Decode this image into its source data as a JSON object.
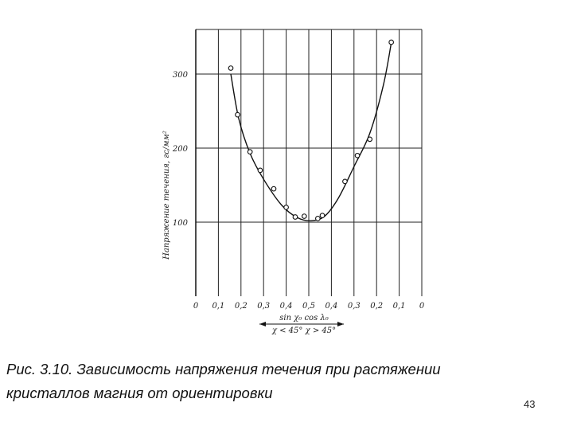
{
  "chart_data": {
    "type": "scatter",
    "ylabel": "Напряжение течения, гс/мм²",
    "ylim": [
      0,
      350
    ],
    "yticks": [
      100,
      200,
      300
    ],
    "ytick_labels": [
      "100",
      "200",
      "300"
    ],
    "xtick_labels": [
      "0",
      "0,1",
      "0,2",
      "0,3",
      "0,4",
      "0,5",
      "0,4",
      "0,3",
      "0,2",
      "0,1",
      "0"
    ],
    "xlabel_line1": "sin χ₀   cos λ₀",
    "xlabel_line2": "χ < 45°  χ > 45°",
    "grid": true,
    "x_description": "orientation: sin χ₀ cos λ₀ rising 0→0,5 for χ<45°, then falling 0,5→0 for χ>45°",
    "series": [
      {
        "points": [
          {
            "x": 0.155,
            "y": 308
          },
          {
            "x": 0.185,
            "y": 245
          },
          {
            "x": 0.24,
            "y": 195
          },
          {
            "x": 0.285,
            "y": 170
          },
          {
            "x": 0.345,
            "y": 145
          },
          {
            "x": 0.4,
            "y": 120
          },
          {
            "x": 0.44,
            "y": 107
          },
          {
            "x": 0.48,
            "y": 108
          },
          {
            "x": 0.54,
            "y": 105
          },
          {
            "x": 0.56,
            "y": 109
          },
          {
            "x": 0.66,
            "y": 155
          },
          {
            "x": 0.715,
            "y": 190
          },
          {
            "x": 0.77,
            "y": 212
          },
          {
            "x": 0.865,
            "y": 343
          }
        ]
      }
    ]
  },
  "caption": {
    "line1": "Рис. 3.10. Зависимость напряжения течения при растяжении",
    "line2": "кристаллов магния от ориентировки"
  },
  "page_number": "43"
}
